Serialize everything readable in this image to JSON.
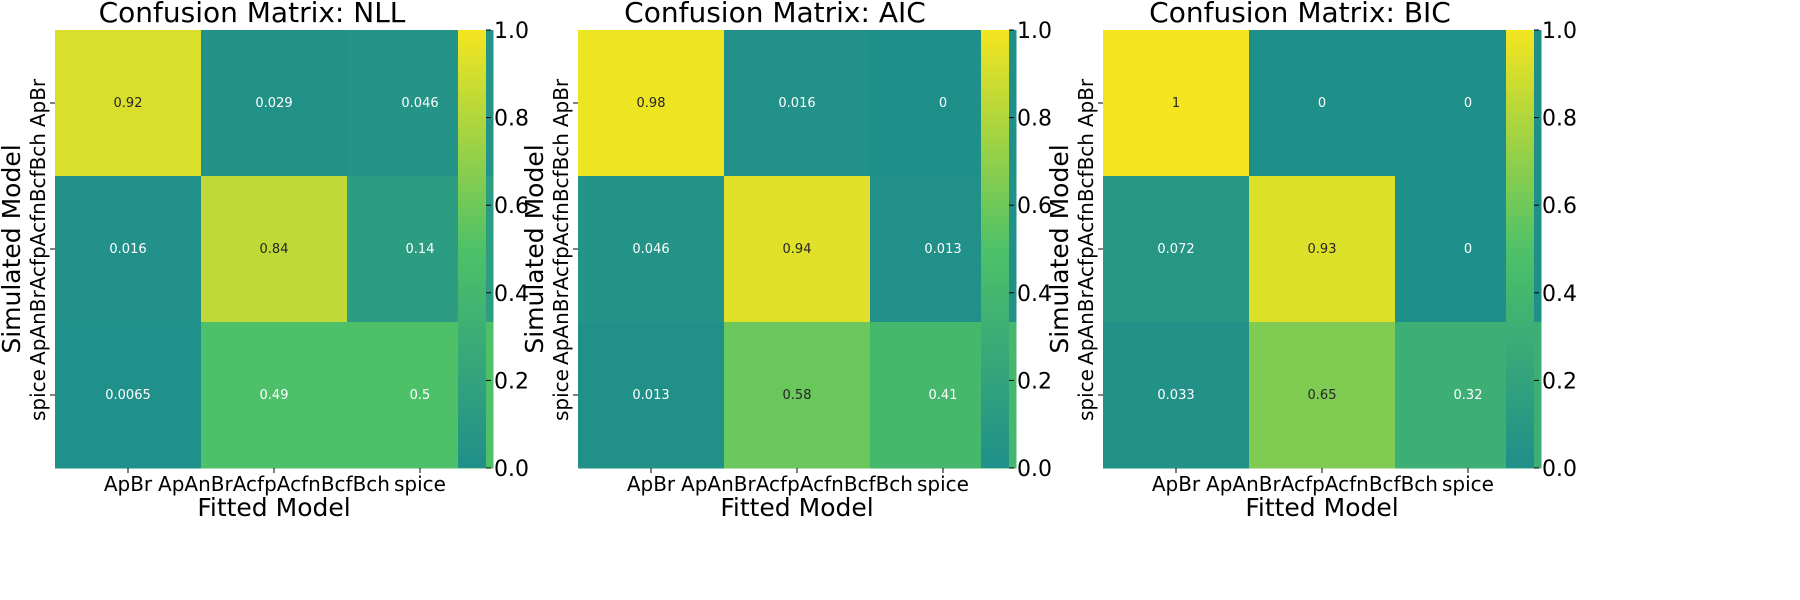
{
  "chart_data": [
    {
      "type": "heatmap",
      "title": "Confusion Matrix: NLL",
      "xlabel": "Fitted Model",
      "ylabel": "Simulated Model",
      "x_categories": [
        "ApBr",
        "ApAnBrAcfpAcfnBcfBch",
        "spice"
      ],
      "y_categories": [
        "ApBr",
        "ApAnBrAcfpAcfnBcfBch",
        "spice"
      ],
      "values": [
        [
          0.92,
          0.029,
          0.046
        ],
        [
          0.016,
          0.84,
          0.14
        ],
        [
          0.0065,
          0.49,
          0.5
        ]
      ],
      "labels": [
        [
          "0.92",
          "0.029",
          "0.046"
        ],
        [
          "0.016",
          "0.84",
          "0.14"
        ],
        [
          "0.0065",
          "0.49",
          "0.5"
        ]
      ],
      "colorbar": {
        "range": [
          0,
          1
        ],
        "ticks": [
          "0.0",
          "0.2",
          "0.4",
          "0.6",
          "0.8",
          "1.0"
        ]
      }
    },
    {
      "type": "heatmap",
      "title": "Confusion Matrix: AIC",
      "xlabel": "Fitted Model",
      "ylabel": "Simulated Model",
      "x_categories": [
        "ApBr",
        "ApAnBrAcfpAcfnBcfBch",
        "spice"
      ],
      "y_categories": [
        "ApBr",
        "ApAnBrAcfpAcfnBcfBch",
        "spice"
      ],
      "values": [
        [
          0.98,
          0.016,
          0
        ],
        [
          0.046,
          0.94,
          0.013
        ],
        [
          0.013,
          0.58,
          0.41
        ]
      ],
      "labels": [
        [
          "0.98",
          "0.016",
          "0"
        ],
        [
          "0.046",
          "0.94",
          "0.013"
        ],
        [
          "0.013",
          "0.58",
          "0.41"
        ]
      ],
      "colorbar": {
        "range": [
          0,
          1
        ],
        "ticks": [
          "0.0",
          "0.2",
          "0.4",
          "0.6",
          "0.8",
          "1.0"
        ]
      }
    },
    {
      "type": "heatmap",
      "title": "Confusion Matrix: BIC",
      "xlabel": "Fitted Model",
      "ylabel": "Simulated Model",
      "x_categories": [
        "ApBr",
        "ApAnBrAcfpAcfnBcfBch",
        "spice"
      ],
      "y_categories": [
        "ApBr",
        "ApAnBrAcfpAcfnBcfBch",
        "spice"
      ],
      "values": [
        [
          1,
          0,
          0
        ],
        [
          0.072,
          0.93,
          0
        ],
        [
          0.033,
          0.65,
          0.32
        ]
      ],
      "labels": [
        [
          "1",
          "0",
          "0"
        ],
        [
          "0.072",
          "0.93",
          "0"
        ],
        [
          "0.033",
          "0.65",
          "0.32"
        ]
      ],
      "colorbar": {
        "range": [
          0,
          1
        ],
        "ticks": [
          "0.0",
          "0.2",
          "0.4",
          "0.6",
          "0.8",
          "1.0"
        ]
      }
    }
  ],
  "colormap": {
    "low": "#1f8f8a",
    "mid": "#4ec168",
    "high": "#f4e51f"
  }
}
